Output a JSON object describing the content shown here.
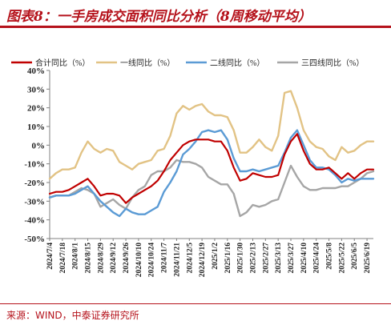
{
  "title": "图表8：一手房成交面积同比分析（8周移动平均）",
  "source": "来源：WIND，中泰证券研究所",
  "colors": {
    "title": "#b5121b",
    "series": [
      "#c00000",
      "#e2c385",
      "#5b9bd5",
      "#a6a6a6"
    ],
    "axis": "#808080"
  },
  "chart_data": {
    "type": "line",
    "ylim": [
      -50,
      40
    ],
    "ytick_step": 10,
    "ytick_format": "percent",
    "legend_position": "top",
    "x": [
      "2024/7/4",
      "2024/7/11",
      "2024/7/18",
      "2024/7/25",
      "2024/8/1",
      "2024/8/8",
      "2024/8/15",
      "2024/8/22",
      "2024/8/29",
      "2024/9/5",
      "2024/9/12",
      "2024/9/19",
      "2024/9/26",
      "2024/10/3",
      "2024/10/10",
      "2024/10/17",
      "2024/10/24",
      "2024/10/31",
      "2024/11/7",
      "2024/11/14",
      "2024/11/21",
      "2024/11/28",
      "2024/12/5",
      "2024/12/12",
      "2024/12/19",
      "2024/12/26",
      "2025/1/2",
      "2025/1/9",
      "2025/1/16",
      "2025/1/23",
      "2025/1/30",
      "2025/2/6",
      "2025/2/13",
      "2025/2/20",
      "2025/2/27",
      "2025/3/6",
      "2025/3/13",
      "2025/3/20",
      "2025/3/27",
      "2025/4/3",
      "2025/4/10",
      "2025/4/17",
      "2025/4/24",
      "2025/5/1",
      "2025/5/8",
      "2025/5/15",
      "2025/5/22",
      "2025/5/29",
      "2025/6/5",
      "2025/6/12",
      "2025/6/19",
      "2025/6/26"
    ],
    "x_tick_labels": [
      "2024/7/4",
      "2024/7/18",
      "2024/8/1",
      "2024/8/15",
      "2024/8/29",
      "2024/9/12",
      "2024/9/26",
      "2024/10/10",
      "2024/10/24",
      "2024/11/7",
      "2024/11/21",
      "2024/12/5",
      "2024/12/19",
      "2025/1/2",
      "2025/1/16",
      "2025/1/30",
      "2025/2/13",
      "2025/2/27",
      "2025/3/13",
      "2025/3/27",
      "2025/4/10",
      "2025/4/24",
      "2025/5/8",
      "2025/5/22",
      "2025/6/5",
      "2025/6/19"
    ],
    "series": [
      {
        "name": "合计同比（%）",
        "values": [
          -26,
          -25,
          -25,
          -24,
          -22,
          -20,
          -18,
          -22,
          -27,
          -26,
          -26,
          -27,
          -31,
          -28,
          -26,
          -24,
          -22,
          -19,
          -14,
          -8,
          -4,
          0,
          2,
          3,
          3,
          3,
          2,
          2,
          -3,
          -12,
          -19,
          -18,
          -15,
          -16,
          -17,
          -17,
          -16,
          -5,
          2,
          6,
          -3,
          -10,
          -13,
          -13,
          -12,
          -15,
          -18,
          -15,
          -18,
          -15,
          -13,
          -13
        ]
      },
      {
        "name": "一线同比（%）",
        "values": [
          -18,
          -15,
          -13,
          -13,
          -12,
          -4,
          2,
          -2,
          -4,
          -2,
          -3,
          -9,
          -11,
          -13,
          -10,
          -9,
          -8,
          -3,
          -2,
          5,
          17,
          21,
          19,
          21,
          22,
          18,
          16,
          16,
          15,
          8,
          -4,
          -4,
          -1,
          3,
          -1,
          -3,
          5,
          28,
          29,
          20,
          8,
          2,
          -1,
          -2,
          -6,
          -8,
          -1,
          -4,
          -3,
          0,
          2,
          2
        ]
      },
      {
        "name": "二线同比（%）",
        "values": [
          -28,
          -27,
          -27,
          -27,
          -26,
          -24,
          -22,
          -26,
          -30,
          -33,
          -36,
          -38,
          -34,
          -36,
          -37,
          -37,
          -35,
          -33,
          -25,
          -20,
          -14,
          -5,
          -2,
          2,
          7,
          8,
          7,
          8,
          3,
          -7,
          -14,
          -14,
          -13,
          -14,
          -13,
          -12,
          -11,
          -4,
          4,
          8,
          0,
          -8,
          -12,
          -12,
          -13,
          -16,
          -20,
          -18,
          -19,
          -18,
          -18,
          -18
        ]
      },
      {
        "name": "三四线同比（%）",
        "values": [
          -28,
          -27,
          -27,
          -27,
          -25,
          -23,
          -24,
          -26,
          -33,
          -31,
          -29,
          -32,
          -34,
          -28,
          -24,
          -22,
          -16,
          -14,
          -14,
          -12,
          -8,
          -9,
          -9,
          -10,
          -12,
          -17,
          -19,
          -21,
          -21,
          -26,
          -38,
          -36,
          -32,
          -33,
          -32,
          -30,
          -29,
          -20,
          -11,
          -17,
          -22,
          -24,
          -24,
          -23,
          -23,
          -23,
          -22,
          -22,
          -20,
          -18,
          -15,
          -14
        ]
      }
    ]
  }
}
